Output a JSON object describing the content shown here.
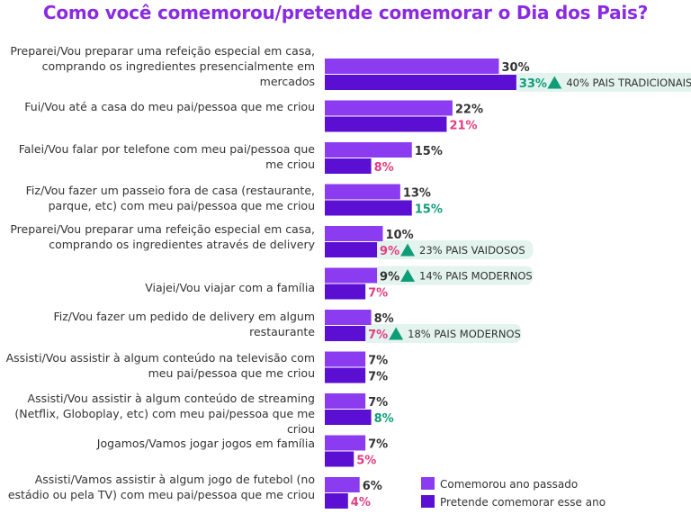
{
  "chart_data": {
    "type": "bar",
    "orientation": "horizontal",
    "title": "Como você comemorou/pretende comemorar o Dia dos Pais?",
    "categories": [
      "Preparei/Vou preparar uma refeição especial em casa,  comprando os ingredientes presencialmente em mercados",
      "Fui/Vou até a casa do meu pai/pessoa que me criou",
      "Falei/Vou falar por telefone com meu pai/pessoa que me criou",
      "Fiz/Vou fazer um passeio fora de casa (restaurante, parque, etc) com meu pai/pessoa que me criou",
      "Preparei/Vou preparar uma refeição especial em casa, comprando os ingredientes  através de delivery",
      "Viajei/Vou viajar com a família",
      "Fiz/Vou fazer um pedido de delivery em algum restaurante",
      "Assisti/Vou assistir à algum conteúdo na televisão com meu pai/pessoa que me criou",
      "Assisti/Vou assistir à algum conteúdo de streaming (Netflix, Globoplay, etc) com meu pai/pessoa que me criou",
      "Jogamos/Vamos jogar jogos em família",
      "Assisti/Vamos assistir à algum jogo de futebol (no estádio ou pela TV) com meu pai/pessoa que me criou"
    ],
    "series": [
      {
        "name": "Comemorou ano passado",
        "color": "#8c3cf0",
        "values": [
          30,
          22,
          15,
          13,
          10,
          9,
          8,
          7,
          7,
          7,
          6
        ],
        "labels": [
          "30%",
          "22%",
          "15%",
          "13%",
          "10%",
          "9%",
          "8%",
          "7%",
          "7%",
          "7%",
          "6%"
        ]
      },
      {
        "name": "Pretende comemorar esse ano",
        "color": "#5a0fd2",
        "values": [
          33,
          21,
          8,
          15,
          9,
          7,
          7,
          7,
          8,
          5,
          4
        ],
        "labels": [
          "33%",
          "21%",
          "8%",
          "15%",
          "9%",
          "7%",
          "7%",
          "7%",
          "8%",
          "5%",
          "4%"
        ],
        "label_colors": [
          "#0f9d78",
          "#e23c82",
          "#e23c82",
          "#0f9d78",
          "#e23c82",
          "#e23c82",
          "#e23c82",
          "#333333",
          "#0f9d78",
          "#e23c82",
          "#e23c82"
        ]
      }
    ],
    "annotations": [
      {
        "category_index": 0,
        "series": 1,
        "text": "40% PAIS TRADICIONAIS"
      },
      {
        "category_index": 4,
        "series": 1,
        "text": "23% PAIS VAIDOSOS"
      },
      {
        "category_index": 5,
        "series": 0,
        "text": "14% PAIS MODERNOS"
      },
      {
        "category_index": 6,
        "series": 1,
        "text": "18% PAIS MODERNOS"
      }
    ],
    "legend_position": "bottom-right",
    "grid": false,
    "xlim": [
      0,
      38
    ]
  },
  "colors": {
    "title": "#8a2be2",
    "neutral_label": "#333333",
    "annotation_bg": "#e3f3ee",
    "up_arrow": "#0f9d78"
  }
}
